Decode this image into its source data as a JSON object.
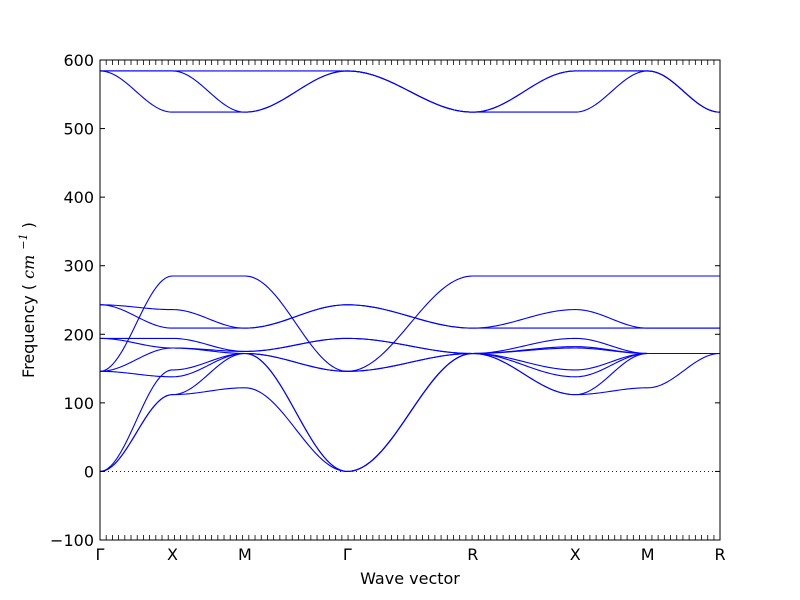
{
  "chart_data": {
    "type": "line",
    "title": "",
    "xlabel": "Wave vector",
    "ylabel": "Frequency",
    "ylabel_unit": "cm",
    "ylabel_unit_exponent": "−1",
    "ylim": [
      -100,
      600
    ],
    "yticks": [
      -100,
      0,
      100,
      200,
      300,
      400,
      500,
      600
    ],
    "x_path_labels": [
      "Γ",
      "X",
      "M",
      "Γ",
      "R",
      "X",
      "M",
      "R"
    ],
    "x_path_positions": [
      0,
      0.5,
      1.0,
      1.707,
      2.573,
      3.28,
      3.78,
      4.279
    ],
    "x_range": [
      0,
      4.279
    ],
    "line_color": "#0000ff",
    "zero_line": {
      "y": 0,
      "style": "dotted",
      "color": "#000000"
    },
    "grid": false,
    "series": [
      {
        "x": [
          0,
          0.5,
          1.0,
          1.707,
          2.573,
          3.28,
          3.78,
          4.279
        ],
        "values": [
          0,
          112,
          122,
          0,
          172,
          112,
          122,
          172
        ]
      },
      {
        "x": [
          0,
          0.5,
          1.0,
          1.707,
          2.573,
          3.28,
          3.78,
          4.279
        ],
        "values": [
          0,
          112,
          172,
          0,
          172,
          112,
          172,
          172
        ]
      },
      {
        "x": [
          0,
          0.5,
          1.0,
          1.707,
          2.573,
          3.28,
          3.78,
          4.279
        ],
        "values": [
          0,
          148,
          172,
          0,
          172,
          148,
          172,
          172
        ]
      },
      {
        "x": [
          0,
          0.5,
          1.0,
          1.707,
          2.573,
          3.28,
          3.78,
          4.279
        ],
        "values": [
          146,
          138,
          172,
          146,
          172,
          138,
          172,
          172
        ]
      },
      {
        "x": [
          0,
          0.5,
          1.0,
          1.707,
          2.573,
          3.28,
          3.78,
          4.279
        ],
        "values": [
          146,
          180,
          172,
          146,
          172,
          180,
          172,
          172
        ]
      },
      {
        "x": [
          0,
          0.5,
          1.0,
          1.707,
          2.573,
          3.28,
          3.78,
          4.279
        ],
        "values": [
          194,
          180,
          175,
          194,
          172,
          182,
          172,
          172
        ]
      },
      {
        "x": [
          0,
          0.5,
          1.0,
          1.707,
          2.573,
          3.28,
          3.78,
          4.279
        ],
        "values": [
          194,
          194,
          175,
          194,
          172,
          194,
          172,
          172
        ]
      },
      {
        "x": [
          0,
          0.5,
          1.0,
          1.707,
          2.573,
          3.28,
          3.78,
          4.279
        ],
        "values": [
          243,
          209,
          209,
          243,
          209,
          209,
          209,
          209
        ]
      },
      {
        "x": [
          0,
          0.5,
          1.0,
          1.707,
          2.573,
          3.28,
          3.78,
          4.279
        ],
        "values": [
          243,
          236,
          209,
          243,
          209,
          236,
          209,
          209
        ]
      },
      {
        "x": [
          0,
          0.5,
          1.0,
          1.707,
          2.573,
          3.28,
          3.78,
          4.279
        ],
        "values": [
          146,
          285,
          285,
          146,
          285,
          285,
          285,
          285
        ]
      },
      {
        "x": [
          0,
          0.5,
          1.0,
          1.707,
          2.573,
          3.28,
          3.78,
          4.279
        ],
        "values": [
          584,
          524,
          524,
          584,
          524,
          524,
          584,
          524
        ]
      },
      {
        "x": [
          0,
          0.5,
          1.0,
          1.707,
          2.573,
          3.28,
          3.78,
          4.279
        ],
        "values": [
          584,
          584,
          524,
          584,
          524,
          584,
          584,
          524
        ]
      },
      {
        "x": [
          0,
          0.5,
          1.0,
          1.707,
          2.573,
          3.28,
          3.78,
          4.279
        ],
        "values": [
          584,
          584,
          584,
          584,
          524,
          584,
          584,
          524
        ]
      }
    ]
  }
}
